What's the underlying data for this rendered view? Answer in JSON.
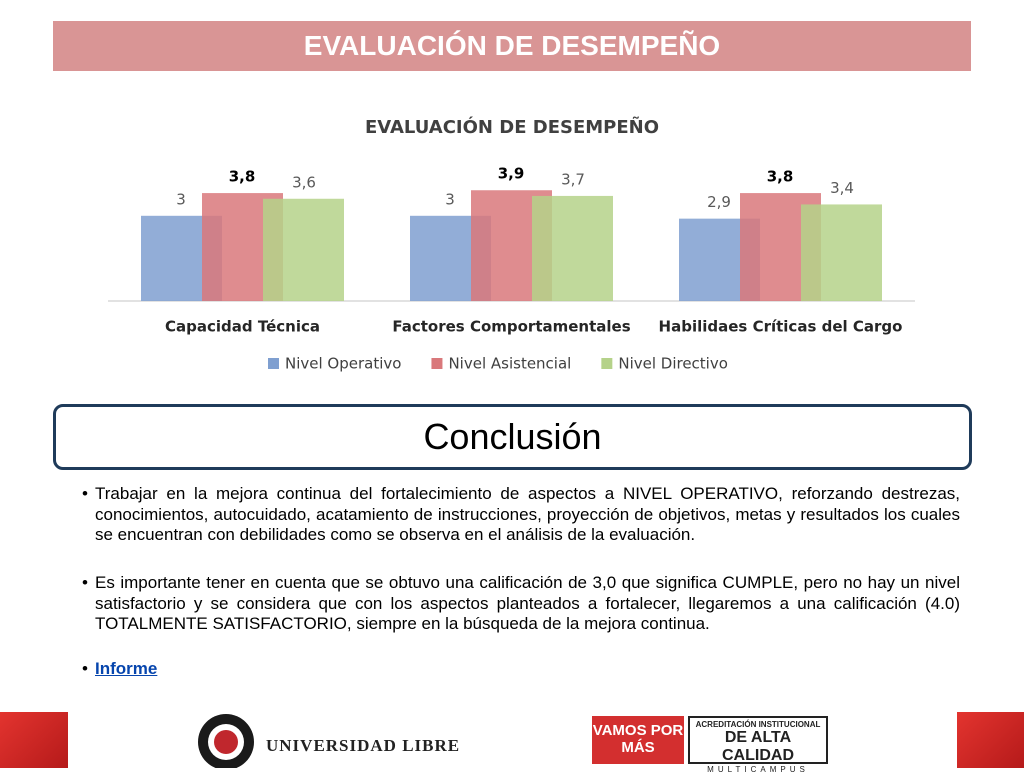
{
  "header": {
    "title": "EVALUACIÓN DE DESEMPEÑO"
  },
  "chart_data": {
    "type": "bar",
    "title": "EVALUACIÓN DE DESEMPEÑO",
    "categories": [
      "Capacidad Técnica",
      "Factores Comportamentales",
      "Habilidaes Críticas del Cargo"
    ],
    "series": [
      {
        "name": "Nivel Operativo",
        "color": "#7f9fd0",
        "values": [
          3,
          3,
          2.9
        ],
        "value_labels": [
          "3",
          "3",
          "2,9"
        ]
      },
      {
        "name": "Nivel Asistencial",
        "color": "#d9787b",
        "values": [
          3.8,
          3.9,
          3.8
        ],
        "value_labels": [
          "3,8",
          "3,9",
          "3,8"
        ]
      },
      {
        "name": "Nivel Directivo",
        "color": "#b5d28a",
        "values": [
          3.6,
          3.7,
          3.4
        ],
        "value_labels": [
          "3,6",
          "3,7",
          "3,4"
        ]
      }
    ],
    "legend": "bottom"
  },
  "conclusion": {
    "title": "Conclusión",
    "bullets": [
      "Trabajar en la mejora continua del fortalecimiento de  aspectos  a  NIVEL OPERATIVO, reforzando destrezas, conocimientos, autocuidado, acatamiento de instrucciones, proyección de objetivos, metas y resultados los cuales se encuentran con debilidades como se observa en el análisis de la evaluación.",
      "Es importante tener en cuenta que se obtuvo una calificación de 3,0 que significa CUMPLE, pero no hay un nivel satisfactorio y se considera que  con los aspectos planteados a fortalecer, llegaremos  a una calificación (4.0) TOTALMENTE SATISFACTORIO, siempre en la búsqueda de la mejora continua."
    ],
    "link": "Informe"
  },
  "footer": {
    "university": "UNIVERSIDAD LIBRE",
    "slogan": "VAMOS POR MÁS",
    "accreditation": [
      "ACREDITACIÓN INSTITUCIONAL",
      "DE ALTA CALIDAD",
      "MULTICAMPUS"
    ]
  }
}
